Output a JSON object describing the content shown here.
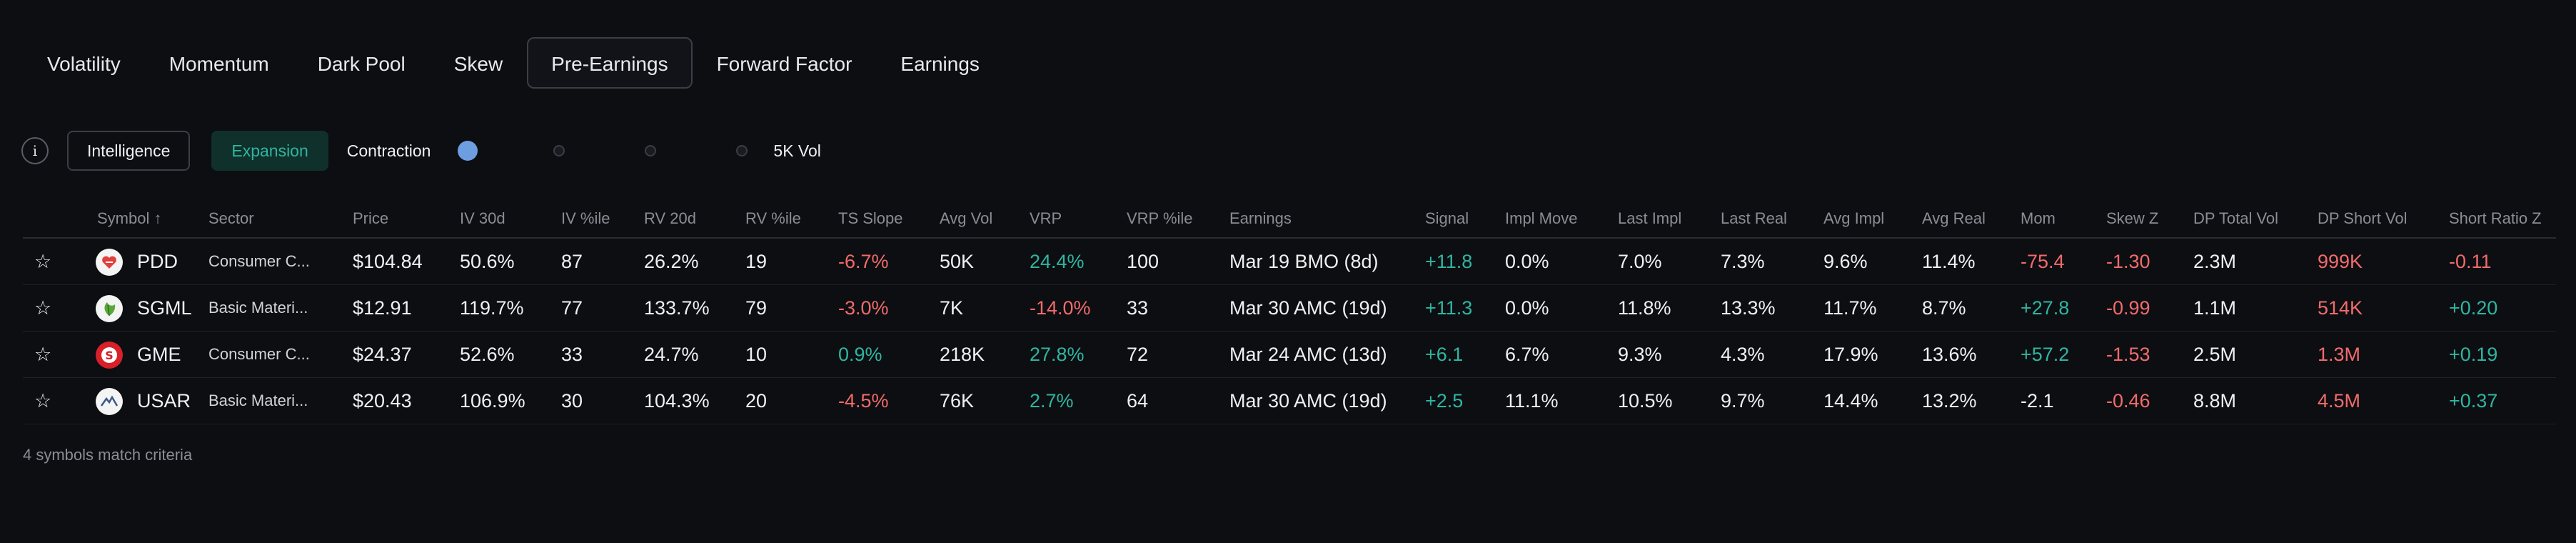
{
  "tabs": [
    {
      "label": "Volatility",
      "active": false
    },
    {
      "label": "Momentum",
      "active": false
    },
    {
      "label": "Dark Pool",
      "active": false
    },
    {
      "label": "Skew",
      "active": false
    },
    {
      "label": "Pre-Earnings",
      "active": true
    },
    {
      "label": "Forward Factor",
      "active": false
    },
    {
      "label": "Earnings",
      "active": false
    }
  ],
  "filters": {
    "info_icon": "i",
    "intelligence": "Intelligence",
    "expansion": "Expansion",
    "contraction": "Contraction",
    "vol_label": "5K Vol"
  },
  "columns": [
    "Symbol ↑",
    "Sector",
    "Price",
    "IV 30d",
    "IV %ile",
    "RV 20d",
    "RV %ile",
    "TS Slope",
    "Avg Vol",
    "VRP",
    "VRP %ile",
    "Earnings",
    "Signal",
    "Impl Move",
    "Last Impl",
    "Last Real",
    "Avg Impl",
    "Avg Real",
    "Mom",
    "Skew Z",
    "DP Total Vol",
    "DP Short Vol",
    "Short Ratio Z"
  ],
  "rows": [
    {
      "symbol": "PDD",
      "sector": "Consumer C...",
      "price": "$104.84",
      "iv30": "50.6%",
      "ivp": "87",
      "rv20": "26.2%",
      "rvp": "19",
      "ts": "-6.7%",
      "avgvol": "50K",
      "vrp": "24.4%",
      "vrpp": "100",
      "earnings": "Mar 19 BMO (8d)",
      "signal": "+11.8",
      "implmove": "0.0%",
      "lastimpl": "7.0%",
      "lastreal": "7.3%",
      "avgimpl": "9.6%",
      "avgreal": "11.4%",
      "mom": "-75.4",
      "skewz": "-1.30",
      "dptotal": "2.3M",
      "dpshort": "999K",
      "srz": "-0.11",
      "logo_icon": "pdd-heart-icon",
      "logo_color": "#f3f3f3"
    },
    {
      "symbol": "SGML",
      "sector": "Basic Materi...",
      "price": "$12.91",
      "iv30": "119.7%",
      "ivp": "77",
      "rv20": "133.7%",
      "rvp": "79",
      "ts": "-3.0%",
      "avgvol": "7K",
      "vrp": "-14.0%",
      "vrpp": "33",
      "earnings": "Mar 30 AMC (19d)",
      "signal": "+11.3",
      "implmove": "0.0%",
      "lastimpl": "11.8%",
      "lastreal": "13.3%",
      "avgimpl": "11.7%",
      "avgreal": "8.7%",
      "mom": "+27.8",
      "skewz": "-0.99",
      "dptotal": "1.1M",
      "dpshort": "514K",
      "srz": "+0.20",
      "logo_icon": "sgml-leaf-icon",
      "logo_color": "#f3f3f3"
    },
    {
      "symbol": "GME",
      "sector": "Consumer C...",
      "price": "$24.37",
      "iv30": "52.6%",
      "ivp": "33",
      "rv20": "24.7%",
      "rvp": "10",
      "ts": "0.9%",
      "avgvol": "218K",
      "vrp": "27.8%",
      "vrpp": "72",
      "earnings": "Mar 24 AMC (13d)",
      "signal": "+6.1",
      "implmove": "6.7%",
      "lastimpl": "9.3%",
      "lastreal": "4.3%",
      "avgimpl": "17.9%",
      "avgreal": "13.6%",
      "mom": "+57.2",
      "skewz": "-1.53",
      "dptotal": "2.5M",
      "dpshort": "1.3M",
      "srz": "+0.19",
      "logo_icon": "gme-logo-icon",
      "logo_color": "#d7202a"
    },
    {
      "symbol": "USAR",
      "sector": "Basic Materi...",
      "price": "$20.43",
      "iv30": "106.9%",
      "ivp": "30",
      "rv20": "104.3%",
      "rvp": "20",
      "ts": "-4.5%",
      "avgvol": "76K",
      "vrp": "2.7%",
      "vrpp": "64",
      "earnings": "Mar 30 AMC (19d)",
      "signal": "+2.5",
      "implmove": "11.1%",
      "lastimpl": "10.5%",
      "lastreal": "9.7%",
      "avgimpl": "14.4%",
      "avgreal": "13.2%",
      "mom": "-2.1",
      "skewz": "-0.46",
      "dptotal": "8.8M",
      "dpshort": "4.5M",
      "srz": "+0.37",
      "logo_icon": "usar-mountain-icon",
      "logo_color": "#f3f3f3"
    }
  ],
  "footer": "4 symbols match criteria",
  "colors": {
    "positive": "#2fb5a0",
    "negative": "#f26b6b",
    "muted": "#8a8d94",
    "background": "#0d0e12"
  }
}
